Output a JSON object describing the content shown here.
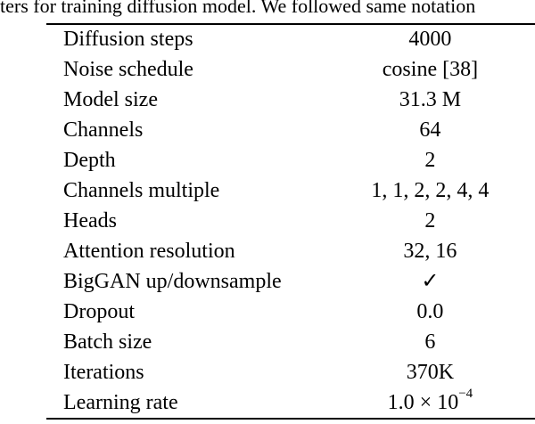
{
  "caption": "ters for training diffusion model. We followed same notation",
  "rows": [
    {
      "label": "Diffusion steps",
      "value": "4000"
    },
    {
      "label": "Noise schedule",
      "value": "cosine [38]"
    },
    {
      "label": "Model size",
      "value": "31.3 M"
    },
    {
      "label": "Channels",
      "value": "64"
    },
    {
      "label": "Depth",
      "value": "2"
    },
    {
      "label": "Channels multiple",
      "value": "1, 1, 2, 2, 4, 4"
    },
    {
      "label": "Heads",
      "value": "2"
    },
    {
      "label": "Attention resolution",
      "value": "32, 16"
    },
    {
      "label": "BigGAN up/downsample",
      "value": "✓"
    },
    {
      "label": "Dropout",
      "value": "0.0"
    },
    {
      "label": "Batch size",
      "value": "6"
    },
    {
      "label": "Iterations",
      "value": "370K"
    },
    {
      "label": "Learning rate",
      "value": "1.0 × 10",
      "value_exponent": "−4"
    }
  ]
}
